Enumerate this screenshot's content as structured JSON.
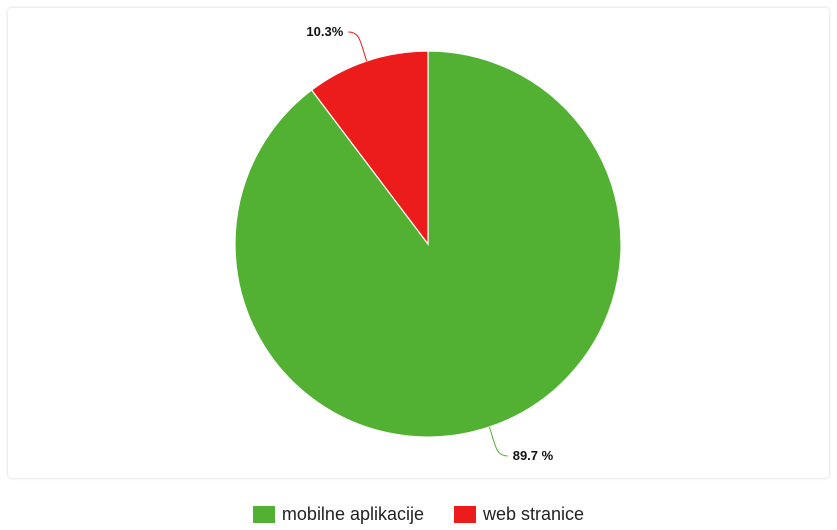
{
  "chart_data": {
    "type": "pie",
    "categories": [
      "mobilne aplikacije",
      "web stranice"
    ],
    "values": [
      89.7,
      10.3
    ],
    "labels": [
      "89.7 %",
      "10.3%"
    ],
    "colors": [
      "#52b133",
      "#ed1c1c"
    ],
    "title": "",
    "legend": "bottom"
  }
}
